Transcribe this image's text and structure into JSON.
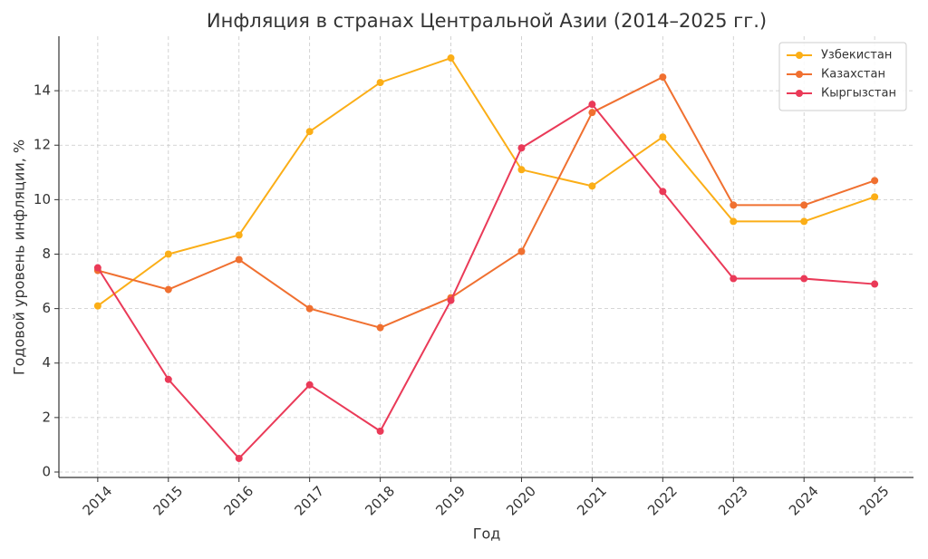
{
  "chart_data": {
    "type": "line",
    "title": "Инфляция в странах Центральной Азии (2014–2025 гг.)",
    "x_label": "Год",
    "y_label": "Годовой уровень инфляции, %",
    "x": [
      2014,
      2015,
      2016,
      2017,
      2018,
      2019,
      2020,
      2021,
      2022,
      2023,
      2024,
      2025
    ],
    "series": [
      {
        "name": "Узбекистан",
        "color": "#fbae17",
        "values": [
          6.1,
          8.0,
          8.7,
          12.5,
          14.3,
          15.2,
          11.1,
          10.5,
          12.3,
          9.2,
          9.2,
          10.1
        ]
      },
      {
        "name": "Казахстан",
        "color": "#f07030",
        "values": [
          7.4,
          6.7,
          7.8,
          6.0,
          5.3,
          6.4,
          8.1,
          13.2,
          14.5,
          9.8,
          9.8,
          10.7
        ]
      },
      {
        "name": "Кыргызстан",
        "color": "#ea3a58",
        "values": [
          7.5,
          3.4,
          0.5,
          3.2,
          1.5,
          6.3,
          11.9,
          13.5,
          10.3,
          7.1,
          7.1,
          6.9
        ]
      }
    ],
    "xlim": [
      2013.45,
      2025.55
    ],
    "xticks": [
      2014,
      2015,
      2016,
      2017,
      2018,
      2019,
      2020,
      2021,
      2022,
      2023,
      2024,
      2025
    ],
    "ylim": [
      -0.2,
      16.0
    ],
    "yticks": [
      0,
      2,
      4,
      6,
      8,
      10,
      12,
      14
    ],
    "grid": true,
    "legend": "upper-right"
  }
}
